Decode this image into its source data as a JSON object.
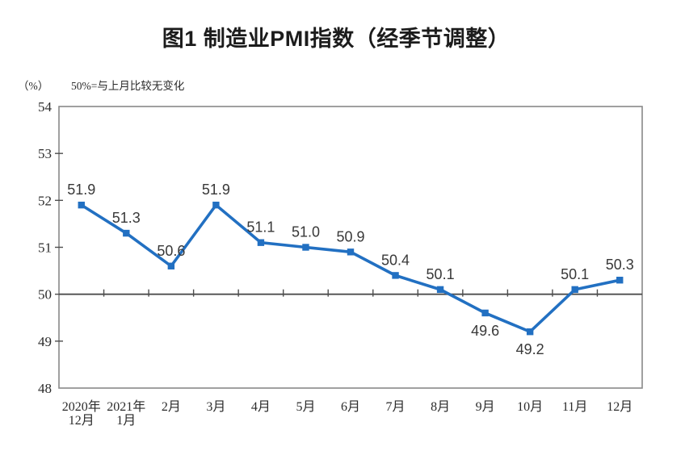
{
  "header": {
    "title": "图1 制造业PMI指数（经季节调整）",
    "unit_label": "（%）",
    "reference_note": "50%=与上月比较无变化"
  },
  "colors": {
    "line": "#2270c2",
    "marker": "#2270c2",
    "plot_border": "#898989",
    "reference_line": "#4d4d4d",
    "tick": "#4d4d4d",
    "data_label": "#383838",
    "axis_label": "#2b2b2b",
    "title": "#1c1c1c",
    "background": "#ffffff"
  },
  "chart_data": {
    "type": "line",
    "title": "图1 制造业PMI指数（经季节调整）",
    "unit": "%",
    "annotation": "50%=与上月比较无变化",
    "categories": [
      "2020年\n12月",
      "2021年\n1月",
      "2月",
      "3月",
      "4月",
      "5月",
      "6月",
      "7月",
      "8月",
      "9月",
      "10月",
      "11月",
      "12月"
    ],
    "values": [
      51.9,
      51.3,
      50.6,
      51.9,
      51.1,
      51.0,
      50.9,
      50.4,
      50.1,
      49.6,
      49.2,
      50.1,
      50.3
    ],
    "ylim": [
      48,
      54
    ],
    "ytick_step": 1,
    "reference_line": 50,
    "grid": false,
    "legend": "none",
    "marker_shape": "square",
    "label_decimals": 1
  }
}
